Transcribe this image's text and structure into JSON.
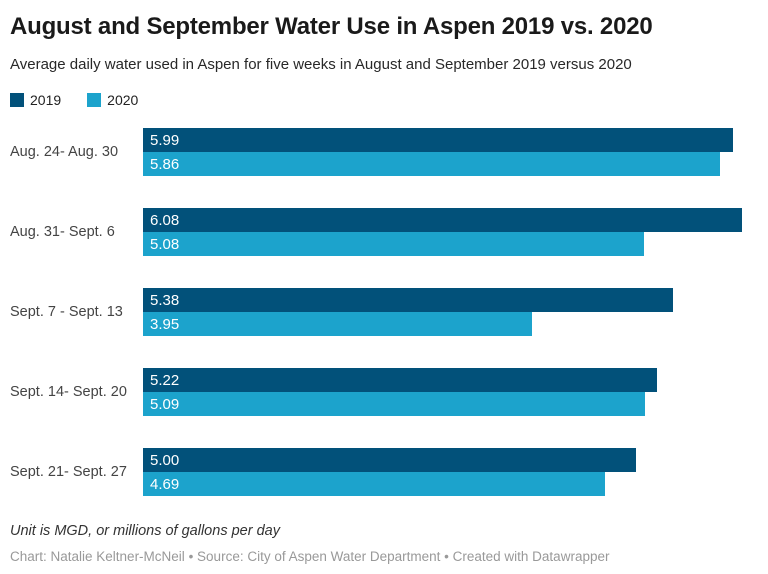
{
  "header": {
    "title": "August and September Water Use in Aspen 2019 vs. 2020",
    "subtitle": "Average daily water used in Aspen for five weeks in August and September 2019 versus 2020"
  },
  "legend": {
    "position": "top-left",
    "items": [
      {
        "label": "2019",
        "color": "#02517a"
      },
      {
        "label": "2020",
        "color": "#1ca3cc"
      }
    ]
  },
  "chart_data": {
    "type": "bar",
    "orientation": "horizontal",
    "title": "August and September Water Use in Aspen 2019 vs. 2020",
    "xlabel": "",
    "ylabel": "",
    "xlim": [
      0,
      6.2
    ],
    "grid": false,
    "legend_position": "top-left",
    "value_label_position": "inside-left",
    "categories": [
      "Aug. 24- Aug. 30",
      "Aug. 31- Sept. 6",
      "Sept. 7 - Sept. 13",
      "Sept. 14- Sept. 20",
      "Sept. 21- Sept. 27"
    ],
    "series": [
      {
        "name": "2019",
        "color": "#02517a",
        "values": [
          5.99,
          6.08,
          5.38,
          5.22,
          5.0
        ],
        "labels": [
          "5.99",
          "6.08",
          "5.38",
          "5.22",
          "5.00"
        ]
      },
      {
        "name": "2020",
        "color": "#1ca3cc",
        "values": [
          5.86,
          5.08,
          3.95,
          5.09,
          4.69
        ],
        "labels": [
          "5.86",
          "5.08",
          "3.95",
          "5.09",
          "4.69"
        ]
      }
    ]
  },
  "footer": {
    "note": "Unit is MGD, or millions of gallons per day",
    "credit_parts": [
      "Chart: Natalie Keltner-McNeil",
      "Source: City of Aspen Water Department",
      "Created with Datawrapper"
    ],
    "credit_separator": " • "
  }
}
